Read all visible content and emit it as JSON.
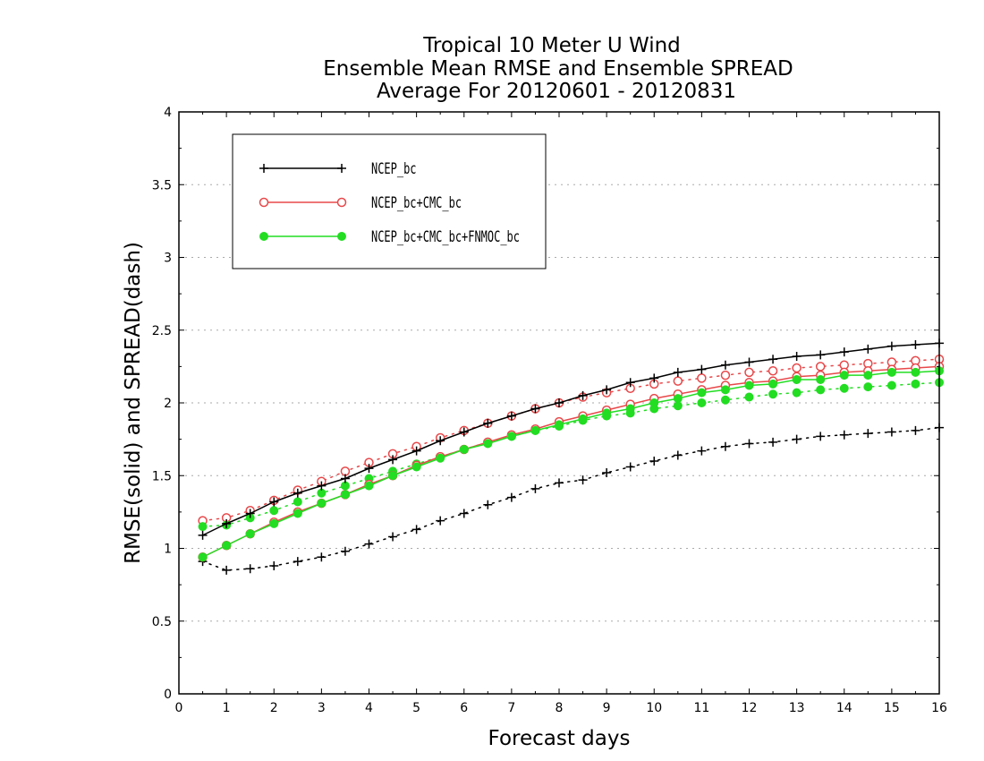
{
  "chart_data": {
    "type": "line",
    "title": [
      "Tropical 10 Meter U Wind",
      "Ensemble Mean RMSE and Ensemble SPREAD",
      "Average For 20120601 - 20120831"
    ],
    "xlabel": "Forecast days",
    "ylabel": "RMSE(solid) and SPREAD(dash)",
    "xlim": [
      0,
      16
    ],
    "ylim": [
      0,
      4
    ],
    "xticks": [
      0,
      1,
      2,
      3,
      4,
      5,
      6,
      7,
      8,
      9,
      10,
      11,
      12,
      13,
      14,
      15,
      16
    ],
    "yticks": [
      0,
      0.5,
      1,
      1.5,
      2,
      2.5,
      3,
      3.5,
      4
    ],
    "grid": true,
    "legend_position": "top-left",
    "x": [
      0.5,
      1,
      1.5,
      2,
      2.5,
      3,
      3.5,
      4,
      4.5,
      5,
      5.5,
      6,
      6.5,
      7,
      7.5,
      8,
      8.5,
      9,
      9.5,
      10,
      10.5,
      11,
      11.5,
      12,
      12.5,
      13,
      13.5,
      14,
      14.5,
      15,
      15.5,
      16
    ],
    "series": [
      {
        "name": "NCEP_bc",
        "color": "#000000",
        "marker": "plus",
        "rmse": [
          1.09,
          1.17,
          1.24,
          1.32,
          1.38,
          1.43,
          1.48,
          1.55,
          1.61,
          1.67,
          1.74,
          1.8,
          1.86,
          1.91,
          1.96,
          2.0,
          2.05,
          2.09,
          2.14,
          2.17,
          2.21,
          2.23,
          2.26,
          2.28,
          2.3,
          2.32,
          2.33,
          2.35,
          2.37,
          2.39,
          2.4,
          2.41
        ],
        "spread": [
          0.91,
          0.85,
          0.86,
          0.88,
          0.91,
          0.94,
          0.98,
          1.03,
          1.08,
          1.13,
          1.19,
          1.24,
          1.3,
          1.35,
          1.41,
          1.45,
          1.47,
          1.52,
          1.56,
          1.6,
          1.64,
          1.67,
          1.7,
          1.72,
          1.73,
          1.75,
          1.77,
          1.78,
          1.79,
          1.8,
          1.81,
          1.83
        ]
      },
      {
        "name": "NCEP_bc+CMC_bc",
        "color": "#e8484a",
        "marker": "open-circle",
        "rmse": [
          0.94,
          1.02,
          1.1,
          1.18,
          1.25,
          1.31,
          1.37,
          1.44,
          1.5,
          1.57,
          1.63,
          1.68,
          1.73,
          1.78,
          1.82,
          1.87,
          1.91,
          1.95,
          1.99,
          2.03,
          2.06,
          2.09,
          2.12,
          2.14,
          2.15,
          2.18,
          2.19,
          2.21,
          2.22,
          2.23,
          2.24,
          2.25
        ],
        "spread": [
          1.19,
          1.21,
          1.26,
          1.33,
          1.4,
          1.46,
          1.53,
          1.59,
          1.65,
          1.7,
          1.76,
          1.81,
          1.86,
          1.91,
          1.96,
          2.0,
          2.04,
          2.07,
          2.1,
          2.13,
          2.15,
          2.17,
          2.19,
          2.21,
          2.22,
          2.24,
          2.25,
          2.26,
          2.27,
          2.28,
          2.29,
          2.3
        ]
      },
      {
        "name": "NCEP_bc+CMC_bc+FNMOC_bc",
        "color": "#22dd22",
        "marker": "filled-circle",
        "rmse": [
          0.94,
          1.02,
          1.1,
          1.17,
          1.24,
          1.31,
          1.37,
          1.43,
          1.5,
          1.56,
          1.62,
          1.68,
          1.72,
          1.77,
          1.81,
          1.85,
          1.89,
          1.93,
          1.96,
          2.0,
          2.03,
          2.07,
          2.09,
          2.12,
          2.13,
          2.16,
          2.16,
          2.19,
          2.19,
          2.21,
          2.21,
          2.22
        ],
        "spread": [
          1.15,
          1.16,
          1.21,
          1.26,
          1.32,
          1.38,
          1.43,
          1.48,
          1.53,
          1.58,
          1.63,
          1.68,
          1.73,
          1.77,
          1.81,
          1.84,
          1.88,
          1.91,
          1.93,
          1.96,
          1.98,
          2.0,
          2.02,
          2.04,
          2.06,
          2.07,
          2.09,
          2.1,
          2.11,
          2.12,
          2.13,
          2.14
        ]
      }
    ]
  }
}
